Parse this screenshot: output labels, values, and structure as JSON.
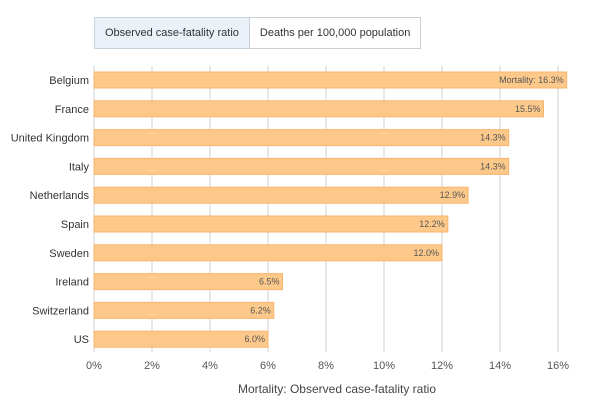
{
  "tabs": [
    {
      "label": "Observed case-fatality ratio",
      "active": true
    },
    {
      "label": "Deaths per 100,000 population",
      "active": false
    }
  ],
  "colors": {
    "bar": "#fdc98a",
    "bar_border": "#f7b56e",
    "grid": "#d2d2d2",
    "tab_active_bg": "#eaf1f9"
  },
  "chart_data": {
    "type": "bar",
    "orientation": "horizontal",
    "categories": [
      "Belgium",
      "France",
      "United Kingdom",
      "Italy",
      "Netherlands",
      "Spain",
      "Sweden",
      "Ireland",
      "Switzerland",
      "US"
    ],
    "values": [
      16.3,
      15.5,
      14.3,
      14.3,
      12.9,
      12.2,
      12.0,
      6.5,
      6.2,
      6.0
    ],
    "data_labels": [
      "Mortality: 16.3%",
      "15.5%",
      "14.3%",
      "14.3%",
      "12.9%",
      "12.2%",
      "12.0%",
      "6.5%",
      "6.2%",
      "6.0%"
    ],
    "xlabel": "Mortality: Observed case-fatality ratio",
    "ylabel": "",
    "xlim": [
      0,
      16
    ],
    "xticks": [
      0,
      2,
      4,
      6,
      8,
      10,
      12,
      14,
      16
    ],
    "xtick_labels": [
      "0%",
      "2%",
      "4%",
      "6%",
      "8%",
      "10%",
      "12%",
      "14%",
      "16%"
    ],
    "grid": true
  }
}
